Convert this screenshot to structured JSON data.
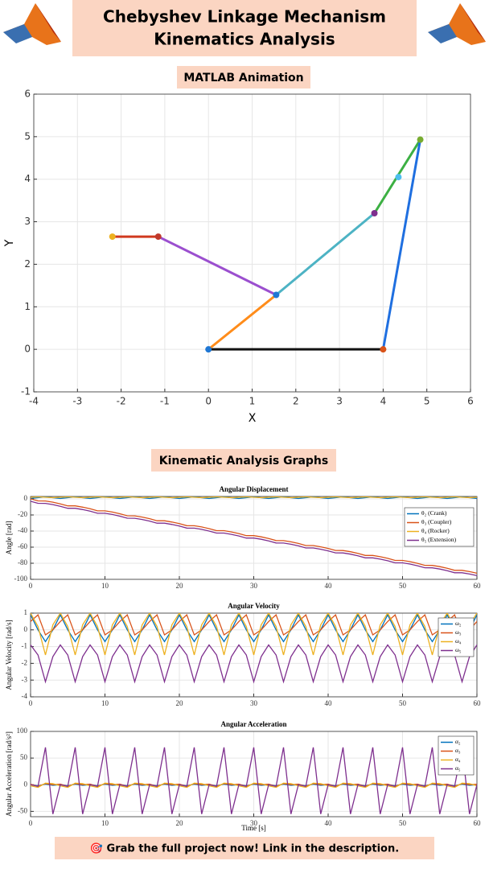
{
  "header": {
    "title_line1": "Chebyshev Linkage Mechanism",
    "title_line2": "Kinematics Analysis"
  },
  "sections": {
    "animation": "MATLAB Animation",
    "graphs": "Kinematic Analysis Graphs"
  },
  "footer": "🎯 Grab the full project now! Link in the description.",
  "chart_data": [
    {
      "type": "linkage",
      "xlabel": "X",
      "ylabel": "Y",
      "xlim": [
        -4,
        6
      ],
      "ylim": [
        -1,
        6
      ],
      "xticks": [
        -4,
        -3,
        -2,
        -1,
        0,
        1,
        2,
        3,
        4,
        5,
        6
      ],
      "yticks": [
        -1,
        0,
        1,
        2,
        3,
        4,
        5,
        6
      ],
      "grid": true,
      "series": [
        {
          "color": "#111111",
          "x": [
            0,
            4
          ],
          "values": [
            0,
            0
          ]
        },
        {
          "color": "#ff8c1a",
          "x": [
            0,
            1.55
          ],
          "values": [
            0,
            1.28
          ]
        },
        {
          "color": "#4db3c4",
          "x": [
            1.55,
            3.8
          ],
          "values": [
            1.28,
            3.2
          ]
        },
        {
          "color": "#3cb043",
          "x": [
            3.8,
            4.85
          ],
          "values": [
            3.2,
            4.93
          ]
        },
        {
          "color": "#1f6fe0",
          "x": [
            4,
            4.85
          ],
          "values": [
            0,
            4.93
          ]
        },
        {
          "color": "#9b4fcf",
          "x": [
            1.55,
            -1.15
          ],
          "values": [
            1.28,
            2.65
          ]
        },
        {
          "color": "#d03a1f",
          "x": [
            -1.15,
            -2.2
          ],
          "values": [
            2.65,
            2.65
          ]
        }
      ],
      "joints": {
        "x": [
          0,
          4,
          1.55,
          3.8,
          4.85,
          4.35,
          -1.15,
          -2.2
        ],
        "values": [
          0,
          0,
          1.28,
          3.2,
          4.93,
          4.05,
          2.65,
          2.65
        ],
        "colors": [
          "#1f77d4",
          "#d95319",
          "#1f77d4",
          "#7e2f8e",
          "#77ac30",
          "#4dbeee",
          "#c0392b",
          "#edb120"
        ]
      }
    },
    {
      "type": "line",
      "title": "Angular Displacement",
      "ylabel": "Angle [rad]",
      "xlim": [
        0,
        60
      ],
      "ylim": [
        -100,
        3
      ],
      "xticks": [
        0,
        10,
        20,
        30,
        40,
        50,
        60
      ],
      "yticks": [
        -100,
        -80,
        -60,
        -40,
        -20,
        0
      ],
      "grid": true,
      "legend": "upper right",
      "x": [
        0,
        1,
        2,
        3,
        4,
        5,
        6,
        7,
        8,
        9,
        10,
        11,
        12,
        13,
        14,
        15,
        16,
        17,
        18,
        19,
        20,
        21,
        22,
        23,
        24,
        25,
        26,
        27,
        28,
        29,
        30,
        31,
        32,
        33,
        34,
        35,
        36,
        37,
        38,
        39,
        40,
        41,
        42,
        43,
        44,
        45,
        46,
        47,
        48,
        49,
        50,
        51,
        52,
        53,
        54,
        55,
        56,
        57,
        58,
        59,
        60
      ],
      "series": [
        {
          "name": "θ₂ (Crank)",
          "color": "#0072bd",
          "values": [
            0.5,
            1.5,
            2.5,
            1.5,
            0.5,
            1.5,
            2.5,
            1.5,
            0.5,
            1.5,
            2.5,
            1.5,
            0.5,
            1.5,
            2.5,
            1.5,
            0.5,
            1.5,
            2.5,
            1.5,
            0.5,
            1.5,
            2.5,
            1.5,
            0.5,
            1.5,
            2.5,
            1.5,
            0.5,
            1.5,
            2.5,
            1.5,
            0.5,
            1.5,
            2.5,
            1.5,
            0.5,
            1.5,
            2.5,
            1.5,
            0.5,
            1.5,
            2.5,
            1.5,
            0.5,
            1.5,
            2.5,
            1.5,
            0.5,
            1.5,
            2.5,
            1.5,
            0.5,
            1.5,
            2.5,
            1.5,
            0.5,
            1.5,
            2.5,
            1.5,
            0.5
          ]
        },
        {
          "name": "θ₃ (Coupler)",
          "color": "#d95319",
          "values": [
            0,
            -2.5,
            -2.6,
            -4.1,
            -6.2,
            -8.7,
            -8.7,
            -10.3,
            -12.3,
            -14.9,
            -14.9,
            -16.4,
            -18.5,
            -21,
            -21.1,
            -22.6,
            -24.6,
            -27.2,
            -27.2,
            -28.8,
            -30.8,
            -33.3,
            -33.4,
            -34.9,
            -37,
            -39.5,
            -39.5,
            -41.1,
            -43.1,
            -45.7,
            -45.7,
            -47.2,
            -49.3,
            -51.8,
            -51.9,
            -53.4,
            -55.4,
            -58,
            -58,
            -59.6,
            -61.6,
            -64.1,
            -64.2,
            -65.7,
            -67.8,
            -70.3,
            -70.3,
            -71.9,
            -73.9,
            -76.5,
            -76.5,
            -78,
            -80.1,
            -82.6,
            -82.7,
            -84.2,
            -86.2,
            -88.8,
            -88.8,
            -90.4,
            -92.4
          ]
        },
        {
          "name": "θ₄ (Rocker)",
          "color": "#edb120",
          "values": [
            2,
            2.5,
            2,
            1.5,
            2,
            2.5,
            2,
            1.5,
            2,
            2.5,
            2,
            1.5,
            2,
            2.5,
            2,
            1.5,
            2,
            2.5,
            2,
            1.5,
            2,
            2.5,
            2,
            1.5,
            2,
            2.5,
            2,
            1.5,
            2,
            2.5,
            2,
            1.5,
            2,
            2.5,
            2,
            1.5,
            2,
            2.5,
            2,
            1.5,
            2,
            2.5,
            2,
            1.5,
            2,
            2.5,
            2,
            1.5,
            2,
            2.5,
            2,
            1.5,
            2,
            2.5,
            2,
            1.5,
            2,
            2.5,
            2,
            1.5,
            2
          ]
        },
        {
          "name": "θ₅ (Extension)",
          "color": "#7e2f8e",
          "values": [
            -3,
            -5.5,
            -5.6,
            -7.1,
            -9.2,
            -11.7,
            -11.7,
            -13.3,
            -15.3,
            -17.9,
            -17.9,
            -19.4,
            -21.5,
            -24,
            -24.1,
            -25.6,
            -27.6,
            -30.2,
            -30.2,
            -31.8,
            -33.8,
            -36.3,
            -36.4,
            -37.9,
            -40,
            -42.5,
            -42.5,
            -44.1,
            -46.1,
            -48.7,
            -48.7,
            -50.2,
            -52.3,
            -54.8,
            -54.9,
            -56.4,
            -58.4,
            -61,
            -61,
            -62.6,
            -64.6,
            -67.1,
            -67.2,
            -68.7,
            -70.8,
            -73.3,
            -73.3,
            -74.9,
            -76.9,
            -79.5,
            -79.5,
            -81,
            -83.1,
            -85.6,
            -85.7,
            -87.2,
            -89.2,
            -91.8,
            -91.8,
            -93.4,
            -95.4
          ]
        }
      ]
    },
    {
      "type": "line",
      "title": "Angular Velocity",
      "ylabel": "Angular Velocity [rad/s]",
      "xlim": [
        0,
        60
      ],
      "ylim": [
        -4,
        1
      ],
      "xticks": [
        0,
        10,
        20,
        30,
        40,
        50,
        60
      ],
      "yticks": [
        -4,
        -3,
        -2,
        -1,
        0,
        1
      ],
      "grid": true,
      "legend": "upper right",
      "x": [
        0,
        1,
        2,
        3,
        4,
        5,
        6,
        7,
        8,
        9,
        10,
        11,
        12,
        13,
        14,
        15,
        16,
        17,
        18,
        19,
        20,
        21,
        22,
        23,
        24,
        25,
        26,
        27,
        28,
        29,
        30,
        31,
        32,
        33,
        34,
        35,
        36,
        37,
        38,
        39,
        40,
        41,
        42,
        43,
        44,
        45,
        46,
        47,
        48,
        49,
        50,
        51,
        52,
        53,
        54,
        55,
        56,
        57,
        58,
        59,
        60
      ],
      "series": [
        {
          "name": "ω₂",
          "color": "#0072bd",
          "values": [
            0.9,
            0,
            -0.7,
            0,
            0.9,
            0,
            -0.7,
            0,
            0.9,
            0,
            -0.7,
            0,
            0.9,
            0,
            -0.7,
            0,
            0.9,
            0,
            -0.7,
            0,
            0.9,
            0,
            -0.7,
            0,
            0.9,
            0,
            -0.7,
            0,
            0.9,
            0,
            -0.7,
            0,
            0.9,
            0,
            -0.7,
            0,
            0.9,
            0,
            -0.7,
            0,
            0.9,
            0,
            -0.7,
            0,
            0.9,
            0,
            -0.7,
            0,
            0.9,
            0,
            -0.7,
            0,
            0.9,
            0,
            -0.7,
            0,
            0.9,
            0,
            -0.7,
            0,
            0.9
          ]
        },
        {
          "name": "ω₃",
          "color": "#d95319",
          "values": [
            0.5,
            0.9,
            -0.3,
            0,
            0.5,
            0.9,
            -0.3,
            0,
            0.5,
            0.9,
            -0.3,
            0,
            0.5,
            0.9,
            -0.3,
            0,
            0.5,
            0.9,
            -0.3,
            0,
            0.5,
            0.9,
            -0.3,
            0,
            0.5,
            0.9,
            -0.3,
            0,
            0.5,
            0.9,
            -0.3,
            0,
            0.5,
            0.9,
            -0.3,
            0,
            0.5,
            0.9,
            -0.3,
            0,
            0.5,
            0.9,
            -0.3,
            0,
            0.5,
            0.9,
            -0.3,
            0,
            0.5,
            0.9,
            -0.3,
            0,
            0.5,
            0.9,
            -0.3,
            0,
            0.5,
            0.9,
            -0.3,
            0,
            0.5
          ]
        },
        {
          "name": "ω₄",
          "color": "#edb120",
          "values": [
            1,
            0.2,
            -1.5,
            0.3,
            1,
            0.2,
            -1.5,
            0.3,
            1,
            0.2,
            -1.5,
            0.3,
            1,
            0.2,
            -1.5,
            0.3,
            1,
            0.2,
            -1.5,
            0.3,
            1,
            0.2,
            -1.5,
            0.3,
            1,
            0.2,
            -1.5,
            0.3,
            1,
            0.2,
            -1.5,
            0.3,
            1,
            0.2,
            -1.5,
            0.3,
            1,
            0.2,
            -1.5,
            0.3,
            1,
            0.2,
            -1.5,
            0.3,
            1,
            0.2,
            -1.5,
            0.3,
            1,
            0.2,
            -1.5,
            0.3,
            1,
            0.2,
            -1.5,
            0.3,
            1,
            0.2,
            -1.5,
            0.3,
            1
          ]
        },
        {
          "name": "ω₅",
          "color": "#7e2f8e",
          "values": [
            -0.9,
            -1.5,
            -3.1,
            -1.6,
            -0.9,
            -1.5,
            -3.1,
            -1.6,
            -0.9,
            -1.5,
            -3.1,
            -1.6,
            -0.9,
            -1.5,
            -3.1,
            -1.6,
            -0.9,
            -1.5,
            -3.1,
            -1.6,
            -0.9,
            -1.5,
            -3.1,
            -1.6,
            -0.9,
            -1.5,
            -3.1,
            -1.6,
            -0.9,
            -1.5,
            -3.1,
            -1.6,
            -0.9,
            -1.5,
            -3.1,
            -1.6,
            -0.9,
            -1.5,
            -3.1,
            -1.6,
            -0.9,
            -1.5,
            -3.1,
            -1.6,
            -0.9,
            -1.5,
            -3.1,
            -1.6,
            -0.9,
            -1.5,
            -3.1,
            -1.6,
            -0.9,
            -1.5,
            -3.1,
            -1.6,
            -0.9,
            -1.5,
            -3.1,
            -1.6,
            -0.9
          ]
        }
      ]
    },
    {
      "type": "line",
      "title": "Angular Acceleration",
      "xlabel": "Time [s]",
      "ylabel": "Angular Acceleration [rad/s²]",
      "xlim": [
        0,
        60
      ],
      "ylim": [
        -60,
        100
      ],
      "xticks": [
        0,
        10,
        20,
        30,
        40,
        50,
        60
      ],
      "yticks": [
        -50,
        0,
        50,
        100
      ],
      "grid": true,
      "legend": "upper right",
      "x": [
        0,
        1,
        2,
        3,
        4,
        5,
        6,
        7,
        8,
        9,
        10,
        11,
        12,
        13,
        14,
        15,
        16,
        17,
        18,
        19,
        20,
        21,
        22,
        23,
        24,
        25,
        26,
        27,
        28,
        29,
        30,
        31,
        32,
        33,
        34,
        35,
        36,
        37,
        38,
        39,
        40,
        41,
        42,
        43,
        44,
        45,
        46,
        47,
        48,
        49,
        50,
        51,
        52,
        53,
        54,
        55,
        56,
        57,
        58,
        59,
        60
      ],
      "series": [
        {
          "name": "α₂",
          "color": "#0072bd",
          "values": [
            0,
            -2,
            1,
            -1,
            0,
            -2,
            1,
            -1,
            0,
            -2,
            1,
            -1,
            0,
            -2,
            1,
            -1,
            0,
            -2,
            1,
            -1,
            0,
            -2,
            1,
            -1,
            0,
            -2,
            1,
            -1,
            0,
            -2,
            1,
            -1,
            0,
            -2,
            1,
            -1,
            0,
            -2,
            1,
            -1,
            0,
            -2,
            1,
            -1,
            0,
            -2,
            1,
            -1,
            0,
            -2,
            1,
            -1,
            0,
            -2,
            1,
            -1,
            0,
            -2,
            1,
            -1,
            0
          ]
        },
        {
          "name": "α₃",
          "color": "#d95319",
          "values": [
            1,
            -3,
            2,
            0,
            1,
            -3,
            2,
            0,
            1,
            -3,
            2,
            0,
            1,
            -3,
            2,
            0,
            1,
            -3,
            2,
            0,
            1,
            -3,
            2,
            0,
            1,
            -3,
            2,
            0,
            1,
            -3,
            2,
            0,
            1,
            -3,
            2,
            0,
            1,
            -3,
            2,
            0,
            1,
            -3,
            2,
            0,
            1,
            -3,
            2,
            0,
            1,
            -3,
            2,
            0,
            1,
            -3,
            2,
            0,
            1,
            -3,
            2,
            0,
            1
          ]
        },
        {
          "name": "α₄",
          "color": "#edb120",
          "values": [
            -2,
            -5,
            3,
            2,
            -2,
            -5,
            3,
            2,
            -2,
            -5,
            3,
            2,
            -2,
            -5,
            3,
            2,
            -2,
            -5,
            3,
            2,
            -2,
            -5,
            3,
            2,
            -2,
            -5,
            3,
            2,
            -2,
            -5,
            3,
            2,
            -2,
            -5,
            3,
            2,
            -2,
            -5,
            3,
            2,
            -2,
            -5,
            3,
            2,
            -2,
            -5,
            3,
            2,
            -2,
            -5,
            3,
            2,
            -2,
            -5,
            3,
            2,
            -2,
            -5,
            3,
            2,
            -2
          ]
        },
        {
          "name": "α₅",
          "color": "#7e2f8e",
          "values": [
            0,
            -3,
            70,
            -55,
            0,
            -3,
            70,
            -55,
            0,
            -3,
            70,
            -55,
            0,
            -3,
            70,
            -55,
            0,
            -3,
            70,
            -55,
            0,
            -3,
            70,
            -55,
            0,
            -3,
            70,
            -55,
            0,
            -3,
            70,
            -55,
            0,
            -3,
            70,
            -55,
            0,
            -3,
            70,
            -55,
            0,
            -3,
            70,
            -55,
            0,
            -3,
            70,
            -55,
            0,
            -3,
            70,
            -55,
            0,
            -3,
            70,
            -55,
            0,
            -3,
            70,
            -55,
            0
          ]
        }
      ]
    }
  ]
}
